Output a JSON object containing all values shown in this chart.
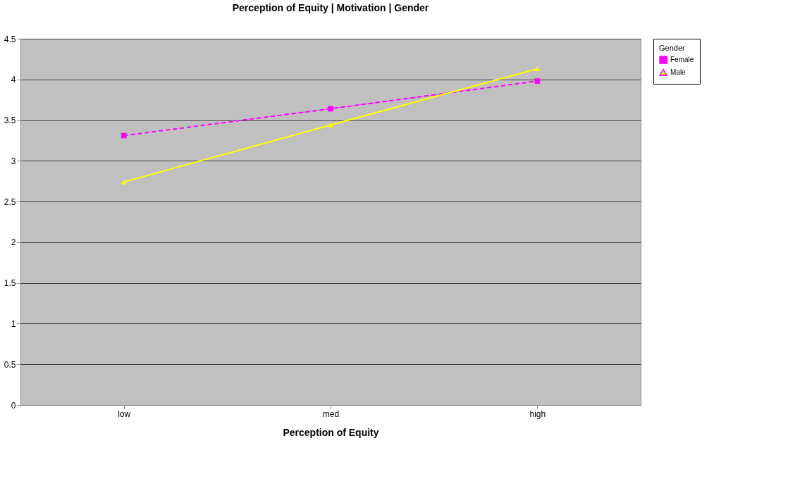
{
  "chart_data": {
    "type": "line",
    "title": "Perception of Equity | Motivation | Gender",
    "xlabel": "Perception of Equity",
    "legend_title": "Gender",
    "categories": [
      "low",
      "med",
      "high"
    ],
    "series": [
      {
        "name": "Female",
        "color": "#ff00ff",
        "values": [
          3.31,
          3.64,
          3.98
        ],
        "line_style": "dashed",
        "marker": "square"
      },
      {
        "name": "Male",
        "color": "#ffff00",
        "values": [
          2.74,
          3.44,
          4.13
        ],
        "line_style": "solid",
        "marker": "triangle"
      }
    ],
    "ylim": [
      0,
      4.5
    ],
    "yticks": [
      0,
      0.5,
      1,
      1.5,
      2,
      2.5,
      3,
      3.5,
      4,
      4.5
    ],
    "grid": "y",
    "legend": "right"
  }
}
